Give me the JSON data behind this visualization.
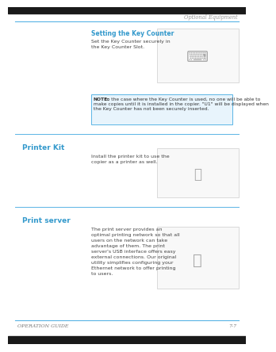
{
  "bg_color": "#ffffff",
  "top_bar_color": "#5ab4e5",
  "header_text": "Optional Equipment",
  "header_color": "#999999",
  "header_fontsize": 4.8,
  "section1_title": "Setting the Key Counter",
  "section1_title_color": "#3399cc",
  "section1_title_fontsize": 5.5,
  "section1_text": "Set the Key Counter securely in\nthe Key Counter Slot.",
  "section1_text_fontsize": 4.5,
  "section1_text_color": "#444444",
  "note_text_bold": "NOTE:",
  "note_text_rest": " In the case where the Key Counter is used, no one will be able to\nmake copies until it is installed in the copier. \"U1\" will be displayed when\nthe Key Counter has not been securely inserted.",
  "note_text_fontsize": 4.3,
  "note_text_color": "#333333",
  "note_border_color": "#5ab4e5",
  "note_bg_color": "#e8f4fc",
  "section2_title": "Printer Kit",
  "section2_title_color": "#3399cc",
  "section2_title_fontsize": 6.5,
  "section2_text": "Install the printer kit to use the\ncopier as a printer as well.",
  "section2_text_fontsize": 4.5,
  "section2_text_color": "#444444",
  "section3_title": "Print server",
  "section3_title_color": "#3399cc",
  "section3_title_fontsize": 6.5,
  "section3_text": "The print server provides an\noptimal printing network so that all\nusers on the network can take\nadvantage of them. The print\nserver's USB interface offers easy\nexternal connections. Our original\nutility simplifies configuring your\nEthernet network to offer printing\nto users.",
  "section3_text_fontsize": 4.5,
  "section3_text_color": "#444444",
  "footer_left": "OPERATION GUIDE",
  "footer_right": "7-7",
  "footer_fontsize": 4.5,
  "footer_color": "#777777",
  "divider_color": "#5ab4e5",
  "img_border_color": "#cccccc",
  "img_bg_color": "#f8f8f8"
}
